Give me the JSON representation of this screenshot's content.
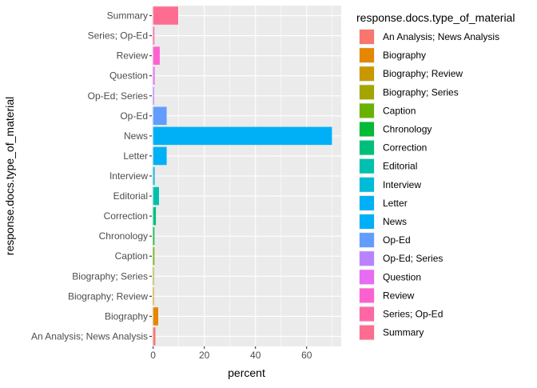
{
  "chart_data": {
    "type": "bar",
    "orientation": "horizontal",
    "xlabel": "percent",
    "ylabel": "response.docs.type_of_material",
    "xlim": [
      -0.5,
      73.5
    ],
    "x_ticks": [
      0,
      20,
      40,
      60
    ],
    "x_tick_labels": [
      "0",
      "20",
      "40",
      "60"
    ],
    "categories": [
      "An Analysis; News Analysis",
      "Biography",
      "Biography; Review",
      "Biography; Series",
      "Caption",
      "Chronology",
      "Correction",
      "Editorial",
      "Interview",
      "Letter",
      "News",
      "Op-Ed",
      "Op-Ed; Series",
      "Question",
      "Review",
      "Series; Op-Ed",
      "Summary"
    ],
    "values": [
      0.9,
      2.0,
      0.3,
      0.3,
      0.5,
      0.5,
      1.1,
      2.3,
      0.6,
      5.3,
      69.9,
      5.3,
      0.4,
      0.6,
      2.6,
      0.5,
      9.8
    ],
    "colors": [
      "#F8766D",
      "#E58700",
      "#C99800",
      "#A3A500",
      "#6BB100",
      "#00BA38",
      "#00BF7D",
      "#00C0AF",
      "#00BCD8",
      "#00B0F6",
      "#00B0F6",
      "#619CFF",
      "#B983FF",
      "#E76BF3",
      "#FD61D1",
      "#FF67A4",
      "#FF6C91"
    ],
    "legend": {
      "title": "response.docs.type_of_material",
      "position": "right"
    },
    "grid": true,
    "panel_background": "#EBEBEB",
    "grid_color": "#FFFFFF"
  }
}
